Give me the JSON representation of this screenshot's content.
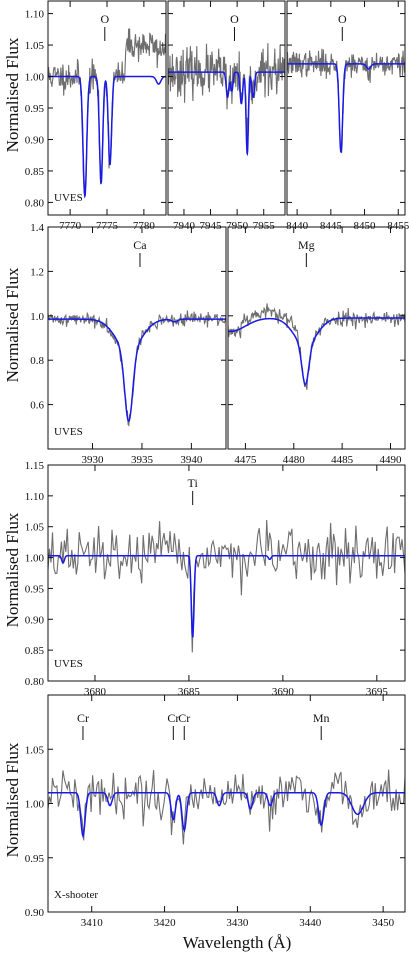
{
  "figure": {
    "ylabel": "Normalised Flux",
    "xlabel": "Wavelength (Å)"
  },
  "colors": {
    "observed": "#6e6e6e",
    "model": "#1a1ae6",
    "axes": "#111111"
  },
  "chart_data": [
    {
      "type": "line",
      "row": 0,
      "ylim": [
        0.78,
        1.12
      ],
      "yticks": [
        "0.80",
        "0.85",
        "0.90",
        "0.95",
        "1.00",
        "1.05",
        "1.10"
      ],
      "instrument_label": "UVES",
      "subplots": [
        {
          "xlim": [
            7767,
            7783
          ],
          "xticks": [
            "7770",
            "7775",
            "7780"
          ],
          "annotations": [
            {
              "text": "O",
              "x": 7774.7
            }
          ],
          "model": {
            "continuum": 1.0,
            "lines": [
              [
                7772.0,
                0.19,
                0.25
              ],
              [
                7774.2,
                0.17,
                0.22
              ],
              [
                7775.4,
                0.14,
                0.22
              ],
              [
                7782.0,
                0.012,
                0.3
              ]
            ]
          },
          "observed": {
            "noise": 0.012,
            "seed": 11,
            "ranges": [
              [
                7777.5,
                7783,
                1.05,
                0.012
              ]
            ]
          }
        },
        {
          "xlim": [
            7937,
            7959
          ],
          "xticks": [
            "7940",
            "7945",
            "7950",
            "7955"
          ],
          "annotations": [
            {
              "text": "O",
              "x": 7949.5
            }
          ],
          "model": {
            "continuum": 1.007,
            "lines": [
              [
                7948.2,
                0.04,
                0.25
              ],
              [
                7949.0,
                0.03,
                0.22
              ],
              [
                7950.8,
                0.05,
                0.25
              ],
              [
                7951.9,
                0.13,
                0.22
              ],
              [
                7953.0,
                0.04,
                0.25
              ]
            ]
          },
          "observed": {
            "noise": 0.018,
            "seed": 23,
            "ranges": []
          }
        },
        {
          "xlim": [
            8438.5,
            8456
          ],
          "xticks": [
            "8440",
            "8445",
            "8450",
            "8455"
          ],
          "annotations": [
            {
              "text": "O",
              "x": 8446.7
            }
          ],
          "model": {
            "continuum": 1.02,
            "lines": [
              [
                8446.5,
                0.14,
                0.25
              ],
              [
                8450.6,
                0.008,
                0.3
              ]
            ]
          },
          "observed": {
            "noise": 0.01,
            "seed": 37,
            "ranges": []
          }
        }
      ]
    },
    {
      "type": "line",
      "row": 1,
      "ylim": [
        0.4,
        1.4
      ],
      "yticks": [
        "0.6",
        "0.8",
        "1.0",
        "1.2",
        "1.4"
      ],
      "instrument_label": "UVES",
      "subplots": [
        {
          "xlim": [
            3925.5,
            3943.5
          ],
          "xticks": [
            "3930",
            "3935",
            "3940"
          ],
          "annotations": [
            {
              "text": "Ca",
              "x": 3934.8
            }
          ],
          "model": {
            "continuum": 0.985,
            "lines": [
              [
                3933.66,
                0.14,
                1.3
              ],
              [
                3933.66,
                0.32,
                0.4
              ],
              [
                3938.3,
                0.012,
                0.3
              ]
            ]
          },
          "observed": {
            "noise": 0.015,
            "seed": 41,
            "ranges": []
          }
        },
        {
          "xlim": [
            4473.2,
            4491.5
          ],
          "xticks": [
            "4475",
            "4480",
            "4485",
            "4490"
          ],
          "annotations": [
            {
              "text": "Mg",
              "x": 4481.3
            }
          ],
          "model": {
            "continuum": 0.99,
            "lines": [
              [
                4481.2,
                0.12,
                1.2
              ],
              [
                4481.2,
                0.18,
                0.35
              ],
              [
                4473.5,
                0.06,
                1.5
              ]
            ]
          },
          "observed": {
            "noise": 0.018,
            "seed": 53,
            "ranges": [
              [
                4474.5,
                4480.5,
                1.02,
                0.018
              ]
            ]
          }
        }
      ]
    },
    {
      "type": "line",
      "row": 2,
      "ylim": [
        0.8,
        1.15
      ],
      "yticks": [
        "0.80",
        "0.85",
        "0.90",
        "0.95",
        "1.00",
        "1.05",
        "1.10",
        "1.15"
      ],
      "instrument_label": "UVES",
      "subplots": [
        {
          "xlim": [
            3677.5,
            3696.5
          ],
          "xticks": [
            "3680",
            "3685",
            "3690",
            "3695"
          ],
          "annotations": [
            {
              "text": "Ti",
              "x": 3685.2
            }
          ],
          "model": {
            "continuum": 1.003,
            "lines": [
              [
                3685.2,
                0.135,
                0.07
              ],
              [
                3678.3,
                0.012,
                0.07
              ],
              [
                3689.3,
                0.006,
                0.07
              ]
            ]
          },
          "observed": {
            "noise": 0.022,
            "seed": 67,
            "ranges": []
          }
        }
      ]
    },
    {
      "type": "line",
      "row": 3,
      "ylim": [
        0.9,
        1.1
      ],
      "yticks": [
        "0.90",
        "0.95",
        "1.00",
        "1.05"
      ],
      "instrument_label": "X-shooter",
      "subplots": [
        {
          "xlim": [
            3404,
            3453
          ],
          "xticks": [
            "3410",
            "3420",
            "3430",
            "3440",
            "3450"
          ],
          "annotations": [
            {
              "text": "Cr",
              "x": 3408.8
            },
            {
              "text": "Cr",
              "x": 3421.2
            },
            {
              "text": "Cr",
              "x": 3422.7
            },
            {
              "text": "Mn",
              "x": 3441.5
            }
          ],
          "model": {
            "continuum": 1.01,
            "lines": [
              [
                3408.8,
                0.04,
                0.3
              ],
              [
                3421.2,
                0.025,
                0.3
              ],
              [
                3422.7,
                0.035,
                0.3
              ],
              [
                3441.5,
                0.03,
                0.35
              ],
              [
                3412.5,
                0.012,
                0.3
              ],
              [
                3427.5,
                0.012,
                0.3
              ],
              [
                3431.8,
                0.015,
                0.3
              ],
              [
                3434.5,
                0.012,
                0.3
              ],
              [
                3446.5,
                0.02,
                0.8
              ]
            ]
          },
          "observed": {
            "noise": 0.01,
            "seed": 79,
            "ranges": []
          }
        }
      ]
    }
  ]
}
